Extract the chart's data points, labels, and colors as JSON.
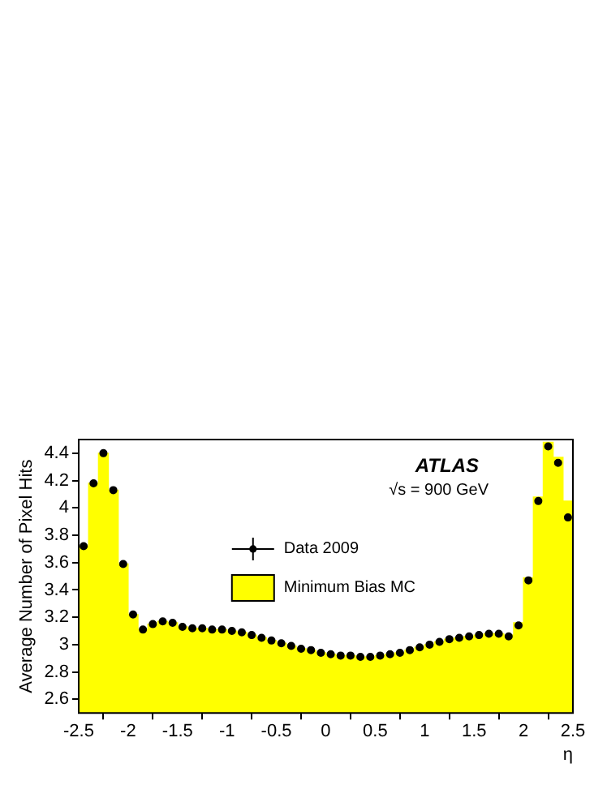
{
  "chart_data": {
    "type": "histogram",
    "xlabel": "η",
    "ylabel": "Average Number of Pixel Hits",
    "bins": [
      -2.5,
      -2.4,
      -2.3,
      -2.2,
      -2.1,
      -2.0,
      -1.9,
      -1.8,
      -1.7,
      -1.6,
      -1.5,
      -1.4,
      -1.3,
      -1.2,
      -1.1,
      -1.0,
      -0.9,
      -0.8,
      -0.7,
      -0.6,
      -0.5,
      -0.4,
      -0.3,
      -0.2,
      -0.1,
      0.0,
      0.1,
      0.2,
      0.3,
      0.4,
      0.5,
      0.6,
      0.7,
      0.8,
      0.9,
      1.0,
      1.1,
      1.2,
      1.3,
      1.4,
      1.5,
      1.6,
      1.7,
      1.8,
      1.9,
      2.0,
      2.1,
      2.2,
      2.3,
      2.4,
      2.5
    ],
    "series": [
      {
        "name": "Minimum Bias MC",
        "type": "histogram",
        "color": "#ffff00",
        "values": [
          3.72,
          4.18,
          4.4,
          4.13,
          3.59,
          3.22,
          3.11,
          3.15,
          3.17,
          3.16,
          3.13,
          3.12,
          3.12,
          3.11,
          3.11,
          3.1,
          3.09,
          3.07,
          3.05,
          3.03,
          3.01,
          2.99,
          2.97,
          2.96,
          2.94,
          2.93,
          2.92,
          2.92,
          2.91,
          2.91,
          2.92,
          2.93,
          2.94,
          2.96,
          2.98,
          3.0,
          3.02,
          3.04,
          3.05,
          3.06,
          3.07,
          3.08,
          3.08,
          3.07,
          3.16,
          3.49,
          4.08,
          4.48,
          4.37,
          4.05
        ]
      },
      {
        "name": "Data 2009",
        "type": "scatter",
        "color": "#000000",
        "x": [
          -2.45,
          -2.35,
          -2.25,
          -2.15,
          -2.05,
          -1.95,
          -1.85,
          -1.75,
          -1.65,
          -1.55,
          -1.45,
          -1.35,
          -1.25,
          -1.15,
          -1.05,
          -0.95,
          -0.85,
          -0.75,
          -0.65,
          -0.55,
          -0.45,
          -0.35,
          -0.25,
          -0.15,
          -0.05,
          0.05,
          0.15,
          0.25,
          0.35,
          0.45,
          0.55,
          0.65,
          0.75,
          0.85,
          0.95,
          1.05,
          1.15,
          1.25,
          1.35,
          1.45,
          1.55,
          1.65,
          1.75,
          1.85,
          1.95,
          2.05,
          2.15,
          2.25,
          2.35,
          2.45
        ],
        "values": [
          3.72,
          4.18,
          4.4,
          4.13,
          3.59,
          3.22,
          3.11,
          3.15,
          3.17,
          3.16,
          3.13,
          3.12,
          3.12,
          3.11,
          3.11,
          3.1,
          3.09,
          3.07,
          3.05,
          3.03,
          3.01,
          2.99,
          2.97,
          2.96,
          2.94,
          2.93,
          2.92,
          2.92,
          2.91,
          2.91,
          2.92,
          2.93,
          2.94,
          2.96,
          2.98,
          3.0,
          3.02,
          3.04,
          3.05,
          3.06,
          3.07,
          3.08,
          3.08,
          3.06,
          3.14,
          3.47,
          4.05,
          4.45,
          4.33,
          3.93
        ]
      }
    ],
    "xlim": [
      -2.5,
      2.5
    ],
    "xticks": [
      -2.5,
      -2,
      -1.5,
      -1,
      -0.5,
      0,
      0.5,
      1,
      1.5,
      2,
      2.5
    ],
    "ylim": [
      2.5,
      4.5
    ],
    "yticks": [
      2.6,
      2.8,
      3,
      3.2,
      3.4,
      3.6,
      3.8,
      4,
      4.2,
      4.4
    ],
    "annotations": [
      "ATLAS",
      "√s = 900 GeV"
    ],
    "legend": "center",
    "grid": false,
    "marker": "circle"
  }
}
